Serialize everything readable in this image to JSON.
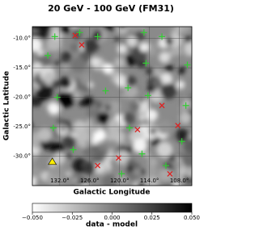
{
  "chart_data": {
    "type": "scatter",
    "title": "20 GeV - 100 GeV (FM31)",
    "x_label": "Galactic Longitude",
    "y_label": "Galactic Latitude",
    "xlim": [
      137.5,
      105.5
    ],
    "ylim": [
      -35,
      -8
    ],
    "xticks": [
      {
        "value": 132,
        "label": "132.0°"
      },
      {
        "value": 126,
        "label": "126.0°"
      },
      {
        "value": 120,
        "label": "120.0°"
      },
      {
        "value": 114,
        "label": "114.0°"
      },
      {
        "value": 108,
        "label": "108.0°"
      }
    ],
    "yticks": [
      {
        "value": -10,
        "label": "-10.0°"
      },
      {
        "value": -15,
        "label": "-15.0°"
      },
      {
        "value": -20,
        "label": "-20.0°"
      },
      {
        "value": -25,
        "label": "-25.0°"
      },
      {
        "value": -30,
        "label": "-30.0°"
      }
    ],
    "grid": true,
    "series": [
      {
        "color": "#33cc33",
        "marker": "plus",
        "x": [
          133.0,
          128.0,
          124.4,
          115.1,
          111.5,
          134.4,
          114.7,
          106.4,
          118.3,
          114.3,
          106.7,
          132.5,
          122.8,
          133.3,
          118.0,
          107.5,
          129.3,
          115.5,
          110.7,
          119.6
        ],
        "values": [
          -9.7,
          -9.0,
          -9.7,
          -9.0,
          -9.7,
          -12.9,
          -14.2,
          -14.5,
          -18.4,
          -19.7,
          -21.4,
          -20.0,
          -18.9,
          -25.2,
          -25.2,
          -27.5,
          -28.9,
          -29.6,
          -31.6,
          -33.0
        ]
      },
      {
        "color": "#dd2222",
        "marker": "cross",
        "x": [
          128.9,
          127.6,
          111.5,
          116.4,
          120.2,
          108.3,
          109.9,
          124.4
        ],
        "values": [
          -9.5,
          -11.1,
          -21.4,
          -25.5,
          -30.3,
          -24.8,
          -33.0,
          -31.6
        ]
      },
      {
        "color": "#ffee00",
        "marker": "triangle",
        "x": [
          133.5
        ],
        "values": [
          -31.0
        ]
      }
    ],
    "colorbar": {
      "label": "data - model",
      "clim": [
        -0.05,
        0.05
      ],
      "ticks": [
        {
          "value": -0.05,
          "label": "−0.050"
        },
        {
          "value": -0.025,
          "label": "−0.025"
        },
        {
          "value": 0,
          "label": "0.000"
        },
        {
          "value": 0.025,
          "label": "0.025"
        },
        {
          "value": 0.05,
          "label": "0.050"
        }
      ]
    }
  }
}
